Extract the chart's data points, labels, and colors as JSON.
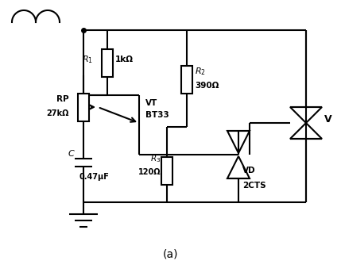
{
  "title": "(a)",
  "background": "#ffffff",
  "line_color": "#000000",
  "lw": 1.5,
  "R1_label": "$R_1$",
  "R1_val": "1kΩ",
  "R2_label": "$R_2$",
  "R2_val": "390Ω",
  "R3_label": "$R_3$",
  "R3_val": "120Ω",
  "RP_label": "RP",
  "RP_val": "27kΩ",
  "C_label": "$C$",
  "C_val": "0.47μF",
  "VT_label": "VT",
  "VT_val": "BT33",
  "VD_label": "VD",
  "VD_val": "2CTS",
  "V_label": "V"
}
